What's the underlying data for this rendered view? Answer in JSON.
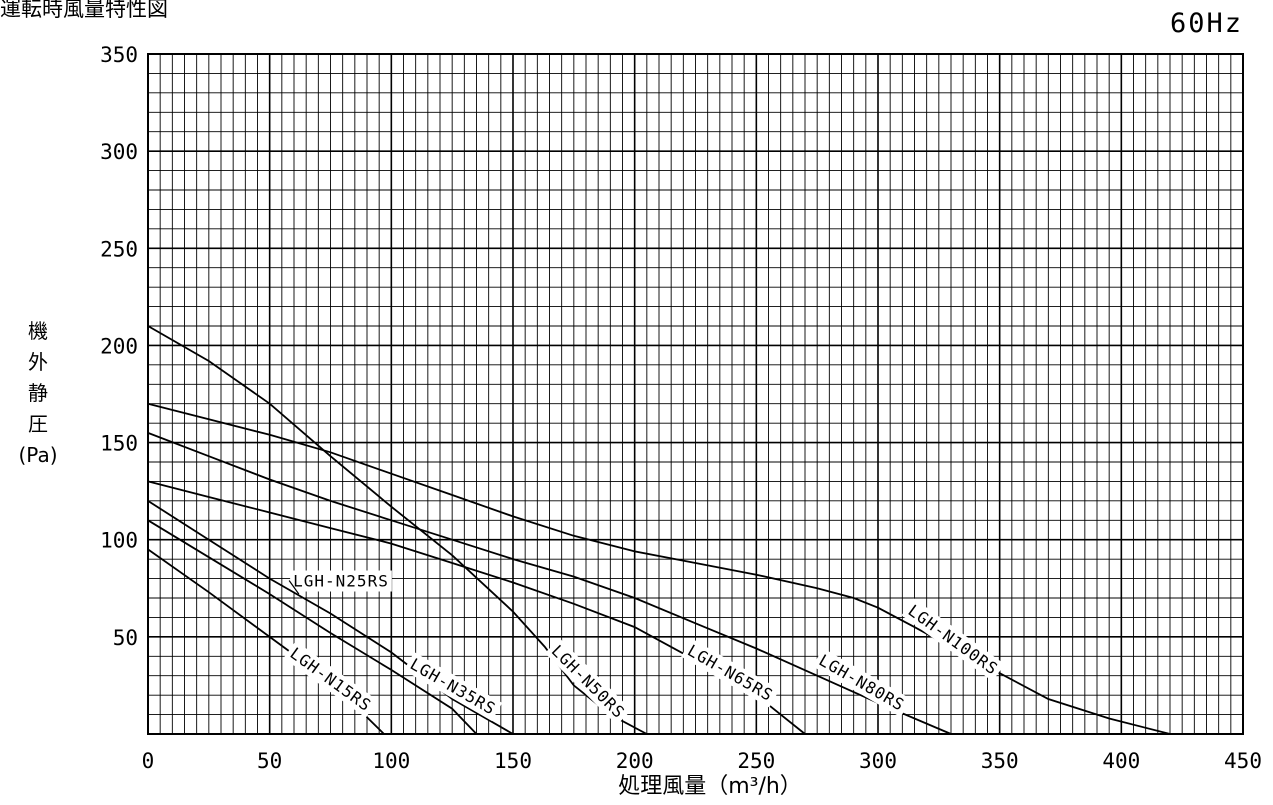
{
  "chart_data": {
    "type": "line",
    "title": "運転時風量特性図",
    "subtitle": "60Hz",
    "xlabel": "処理風量（m³/h）",
    "ylabel": "機外静圧(Pa)",
    "ylabel_chars": [
      "機",
      "外",
      "静",
      "圧",
      "(Pa)"
    ],
    "xlim": [
      0,
      450
    ],
    "ylim": [
      0,
      350
    ],
    "x_ticks": [
      0,
      50,
      100,
      150,
      200,
      250,
      300,
      350,
      400,
      450
    ],
    "y_ticks": [
      50,
      100,
      150,
      200,
      250,
      300,
      350
    ],
    "grid": true,
    "series": [
      {
        "name": "LGH-N15RS",
        "points": [
          [
            0,
            95
          ],
          [
            25,
            73
          ],
          [
            50,
            50
          ],
          [
            75,
            27
          ],
          [
            97,
            0
          ]
        ]
      },
      {
        "name": "LGH-N25RS",
        "points": [
          [
            0,
            110
          ],
          [
            25,
            91
          ],
          [
            50,
            72
          ],
          [
            75,
            52
          ],
          [
            100,
            33
          ],
          [
            125,
            13
          ],
          [
            135,
            0
          ]
        ]
      },
      {
        "name": "LGH-N35RS",
        "points": [
          [
            0,
            120
          ],
          [
            25,
            100
          ],
          [
            50,
            80
          ],
          [
            75,
            62
          ],
          [
            100,
            42
          ],
          [
            125,
            18
          ],
          [
            150,
            0
          ]
        ]
      },
      {
        "name": "LGH-N50RS",
        "points": [
          [
            0,
            210
          ],
          [
            25,
            192
          ],
          [
            50,
            170
          ],
          [
            75,
            143
          ],
          [
            100,
            117
          ],
          [
            125,
            92
          ],
          [
            150,
            63
          ],
          [
            163,
            45
          ],
          [
            175,
            25
          ],
          [
            190,
            10
          ],
          [
            205,
            0
          ]
        ]
      },
      {
        "name": "LGH-N65RS",
        "points": [
          [
            0,
            130
          ],
          [
            25,
            122
          ],
          [
            50,
            114
          ],
          [
            75,
            106
          ],
          [
            100,
            98
          ],
          [
            125,
            88
          ],
          [
            150,
            78
          ],
          [
            175,
            67
          ],
          [
            200,
            55
          ],
          [
            225,
            38
          ],
          [
            250,
            20
          ],
          [
            270,
            0
          ]
        ]
      },
      {
        "name": "LGH-N80RS",
        "points": [
          [
            0,
            155
          ],
          [
            25,
            143
          ],
          [
            50,
            131
          ],
          [
            75,
            120
          ],
          [
            100,
            110
          ],
          [
            125,
            100
          ],
          [
            150,
            90
          ],
          [
            175,
            81
          ],
          [
            200,
            70
          ],
          [
            225,
            57
          ],
          [
            250,
            44
          ],
          [
            275,
            30
          ],
          [
            300,
            16
          ],
          [
            330,
            0
          ]
        ]
      },
      {
        "name": "LGH-N100RS",
        "points": [
          [
            0,
            170
          ],
          [
            25,
            162
          ],
          [
            50,
            154
          ],
          [
            75,
            145
          ],
          [
            100,
            134
          ],
          [
            125,
            123
          ],
          [
            150,
            112
          ],
          [
            175,
            102
          ],
          [
            200,
            94
          ],
          [
            225,
            88
          ],
          [
            250,
            82
          ],
          [
            275,
            75
          ],
          [
            290,
            70
          ],
          [
            300,
            65
          ],
          [
            315,
            55
          ],
          [
            340,
            38
          ],
          [
            370,
            18
          ],
          [
            395,
            8
          ],
          [
            420,
            0
          ]
        ]
      }
    ]
  }
}
